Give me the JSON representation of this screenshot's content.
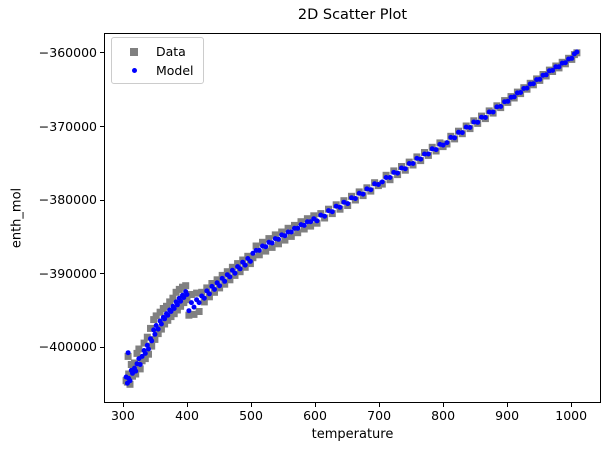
{
  "chart_data": {
    "type": "scatter",
    "title": "2D Scatter Plot",
    "xlabel": "temperature",
    "ylabel": "enth_mol",
    "xlim": [
      272,
      1045
    ],
    "ylim": [
      -407500,
      -357500
    ],
    "grid": false,
    "legend": {
      "position": "upper left",
      "entries": [
        "Data",
        "Model"
      ]
    },
    "x_ticks": [
      300,
      400,
      500,
      600,
      700,
      800,
      900,
      1000
    ],
    "y_ticks": [
      -400000,
      -390000,
      -380000,
      -370000,
      -360000
    ],
    "series": [
      {
        "name": "Data",
        "marker": "square",
        "color": "#808080",
        "marker_size_px": 7
      },
      {
        "name": "Model",
        "marker": "circle",
        "color": "#0000ff",
        "marker_size_px": 5
      }
    ],
    "points_columns": [
      "temperature",
      "Data_enth_mol",
      "Model_enth_mol"
    ],
    "points": [
      [
        305,
        -404600,
        -404100
      ],
      [
        307,
        -404800,
        -404950
      ],
      [
        308,
        -401300,
        -400800
      ],
      [
        309,
        -403700,
        -404300
      ],
      [
        311,
        -405100,
        -404600
      ],
      [
        313,
        -402400,
        -403200
      ],
      [
        315,
        -404000,
        -403600
      ],
      [
        318,
        -402200,
        -402900
      ],
      [
        320,
        -403700,
        -403300
      ],
      [
        322,
        -400900,
        -402300
      ],
      [
        325,
        -400300,
        -401600
      ],
      [
        327,
        -403000,
        -402400
      ],
      [
        330,
        -401900,
        -401300
      ],
      [
        333,
        -399500,
        -400500
      ],
      [
        335,
        -401600,
        -400900
      ],
      [
        338,
        -398700,
        -399800
      ],
      [
        340,
        -401000,
        -400300
      ],
      [
        343,
        -397500,
        -398900
      ],
      [
        345,
        -399900,
        -399200
      ],
      [
        348,
        -396300,
        -397700
      ],
      [
        350,
        -399000,
        -398300
      ],
      [
        352,
        -395800,
        -397100
      ],
      [
        355,
        -398200,
        -397600
      ],
      [
        358,
        -395300,
        -396500
      ],
      [
        360,
        -397600,
        -396900
      ],
      [
        363,
        -394800,
        -396000
      ],
      [
        365,
        -396900,
        -396200
      ],
      [
        368,
        -394500,
        -395500
      ],
      [
        370,
        -396400,
        -395700
      ],
      [
        373,
        -393900,
        -395000
      ],
      [
        375,
        -395900,
        -395200
      ],
      [
        378,
        -393400,
        -394500
      ],
      [
        380,
        -395500,
        -394800
      ],
      [
        383,
        -392600,
        -393900
      ],
      [
        385,
        -395000,
        -394300
      ],
      [
        388,
        -392200,
        -393400
      ],
      [
        390,
        -394500,
        -393800
      ],
      [
        393,
        -391900,
        -393000
      ],
      [
        395,
        -394000,
        -393300
      ],
      [
        398,
        -391700,
        -392500
      ],
      [
        400,
        -393600,
        -392900
      ],
      [
        403,
        -395700,
        -395100
      ],
      [
        407,
        -392900,
        -394000
      ],
      [
        411,
        -395600,
        -394600
      ],
      [
        415,
        -392700,
        -393600
      ],
      [
        419,
        -395200,
        -394000
      ],
      [
        423,
        -392600,
        -393100
      ],
      [
        427,
        -393900,
        -393400
      ],
      [
        431,
        -392000,
        -392400
      ],
      [
        435,
        -393200,
        -392800
      ],
      [
        439,
        -391400,
        -391800
      ],
      [
        443,
        -392600,
        -392200
      ],
      [
        447,
        -390900,
        -391300
      ],
      [
        451,
        -392000,
        -391700
      ],
      [
        455,
        -390300,
        -390700
      ],
      [
        459,
        -391500,
        -391100
      ],
      [
        463,
        -389800,
        -390200
      ],
      [
        467,
        -390900,
        -390500
      ],
      [
        471,
        -389200,
        -389600
      ],
      [
        475,
        -390300,
        -390000
      ],
      [
        479,
        -388700,
        -389100
      ],
      [
        483,
        -389800,
        -389400
      ],
      [
        487,
        -388200,
        -388500
      ],
      [
        491,
        -389200,
        -388900
      ],
      [
        495,
        -387700,
        -388000
      ],
      [
        499,
        -388700,
        -388400
      ],
      [
        503,
        -387900,
        -387300
      ],
      [
        508,
        -386300,
        -386900
      ],
      [
        513,
        -387500,
        -386900
      ],
      [
        518,
        -385800,
        -386300
      ],
      [
        523,
        -387000,
        -386400
      ],
      [
        528,
        -385300,
        -385800
      ],
      [
        533,
        -386500,
        -385900
      ],
      [
        538,
        -384800,
        -385300
      ],
      [
        543,
        -386000,
        -385400
      ],
      [
        548,
        -384400,
        -384800
      ],
      [
        553,
        -385500,
        -384900
      ],
      [
        558,
        -383900,
        -384400
      ],
      [
        563,
        -385000,
        -384400
      ],
      [
        568,
        -383500,
        -383900
      ],
      [
        573,
        -384500,
        -383900
      ],
      [
        578,
        -383000,
        -383400
      ],
      [
        583,
        -384000,
        -383500
      ],
      [
        588,
        -382600,
        -383000
      ],
      [
        593,
        -383600,
        -383000
      ],
      [
        598,
        -382200,
        -382600
      ],
      [
        603,
        -383200,
        -382900
      ],
      [
        609,
        -381900,
        -382100
      ],
      [
        615,
        -382500,
        -382250
      ],
      [
        621,
        -381300,
        -381500
      ],
      [
        627,
        -381900,
        -381650
      ],
      [
        633,
        -380700,
        -380900
      ],
      [
        639,
        -381300,
        -381050
      ],
      [
        645,
        -380150,
        -380350
      ],
      [
        651,
        -380800,
        -380550
      ],
      [
        657,
        -379550,
        -379750
      ],
      [
        663,
        -380050,
        -379850
      ],
      [
        669,
        -378950,
        -379150
      ],
      [
        675,
        -379450,
        -379250
      ],
      [
        681,
        -378400,
        -378550
      ],
      [
        687,
        -378850,
        -378650
      ],
      [
        693,
        -377700,
        -377850
      ],
      [
        699,
        -378100,
        -377950
      ],
      [
        705,
        -377900,
        -377600
      ],
      [
        711,
        -376700,
        -377000
      ],
      [
        717,
        -377300,
        -377000
      ],
      [
        723,
        -376100,
        -376300
      ],
      [
        729,
        -376600,
        -376400
      ],
      [
        735,
        -375500,
        -375700
      ],
      [
        741,
        -376000,
        -375800
      ],
      [
        747,
        -374900,
        -375100
      ],
      [
        753,
        -375300,
        -375100
      ],
      [
        759,
        -374200,
        -374400
      ],
      [
        765,
        -374700,
        -374500
      ],
      [
        771,
        -373600,
        -373800
      ],
      [
        777,
        -374000,
        -373800
      ],
      [
        783,
        -372900,
        -373100
      ],
      [
        789,
        -373400,
        -373200
      ],
      [
        795,
        -372300,
        -372500
      ],
      [
        800,
        -372800,
        -372600
      ],
      [
        806,
        -372450,
        -372250
      ],
      [
        812,
        -371400,
        -371550
      ],
      [
        818,
        -371750,
        -371600
      ],
      [
        824,
        -370700,
        -370850
      ],
      [
        830,
        -371050,
        -370900
      ],
      [
        836,
        -370000,
        -370150
      ],
      [
        842,
        -370350,
        -370200
      ],
      [
        848,
        -369300,
        -369450
      ],
      [
        854,
        -369650,
        -369500
      ],
      [
        860,
        -368650,
        -368800
      ],
      [
        866,
        -369000,
        -368850
      ],
      [
        872,
        -367950,
        -368100
      ],
      [
        878,
        -368250,
        -368100
      ],
      [
        884,
        -367250,
        -367400
      ],
      [
        890,
        -367500,
        -367350
      ],
      [
        896,
        -366550,
        -366700
      ],
      [
        901,
        -366800,
        -366650
      ],
      [
        906,
        -366000,
        -366100
      ],
      [
        911,
        -366200,
        -366050
      ],
      [
        916,
        -365400,
        -365500
      ],
      [
        921,
        -365600,
        -365450
      ],
      [
        926,
        -364800,
        -364900
      ],
      [
        931,
        -365000,
        -364850
      ],
      [
        936,
        -364200,
        -364300
      ],
      [
        941,
        -364400,
        -364250
      ],
      [
        946,
        -363600,
        -363700
      ],
      [
        951,
        -363800,
        -363650
      ],
      [
        956,
        -363000,
        -363100
      ],
      [
        961,
        -363200,
        -363050
      ],
      [
        966,
        -362400,
        -362500
      ],
      [
        971,
        -362600,
        -362450
      ],
      [
        976,
        -361850,
        -361950
      ],
      [
        981,
        -362100,
        -361950
      ],
      [
        986,
        -361350,
        -361450
      ],
      [
        991,
        -361550,
        -361400
      ],
      [
        996,
        -360800,
        -360900
      ],
      [
        1001,
        -360950,
        -360800
      ],
      [
        1005,
        -360300,
        -360200
      ],
      [
        1009,
        -360050,
        -359950
      ]
    ]
  }
}
